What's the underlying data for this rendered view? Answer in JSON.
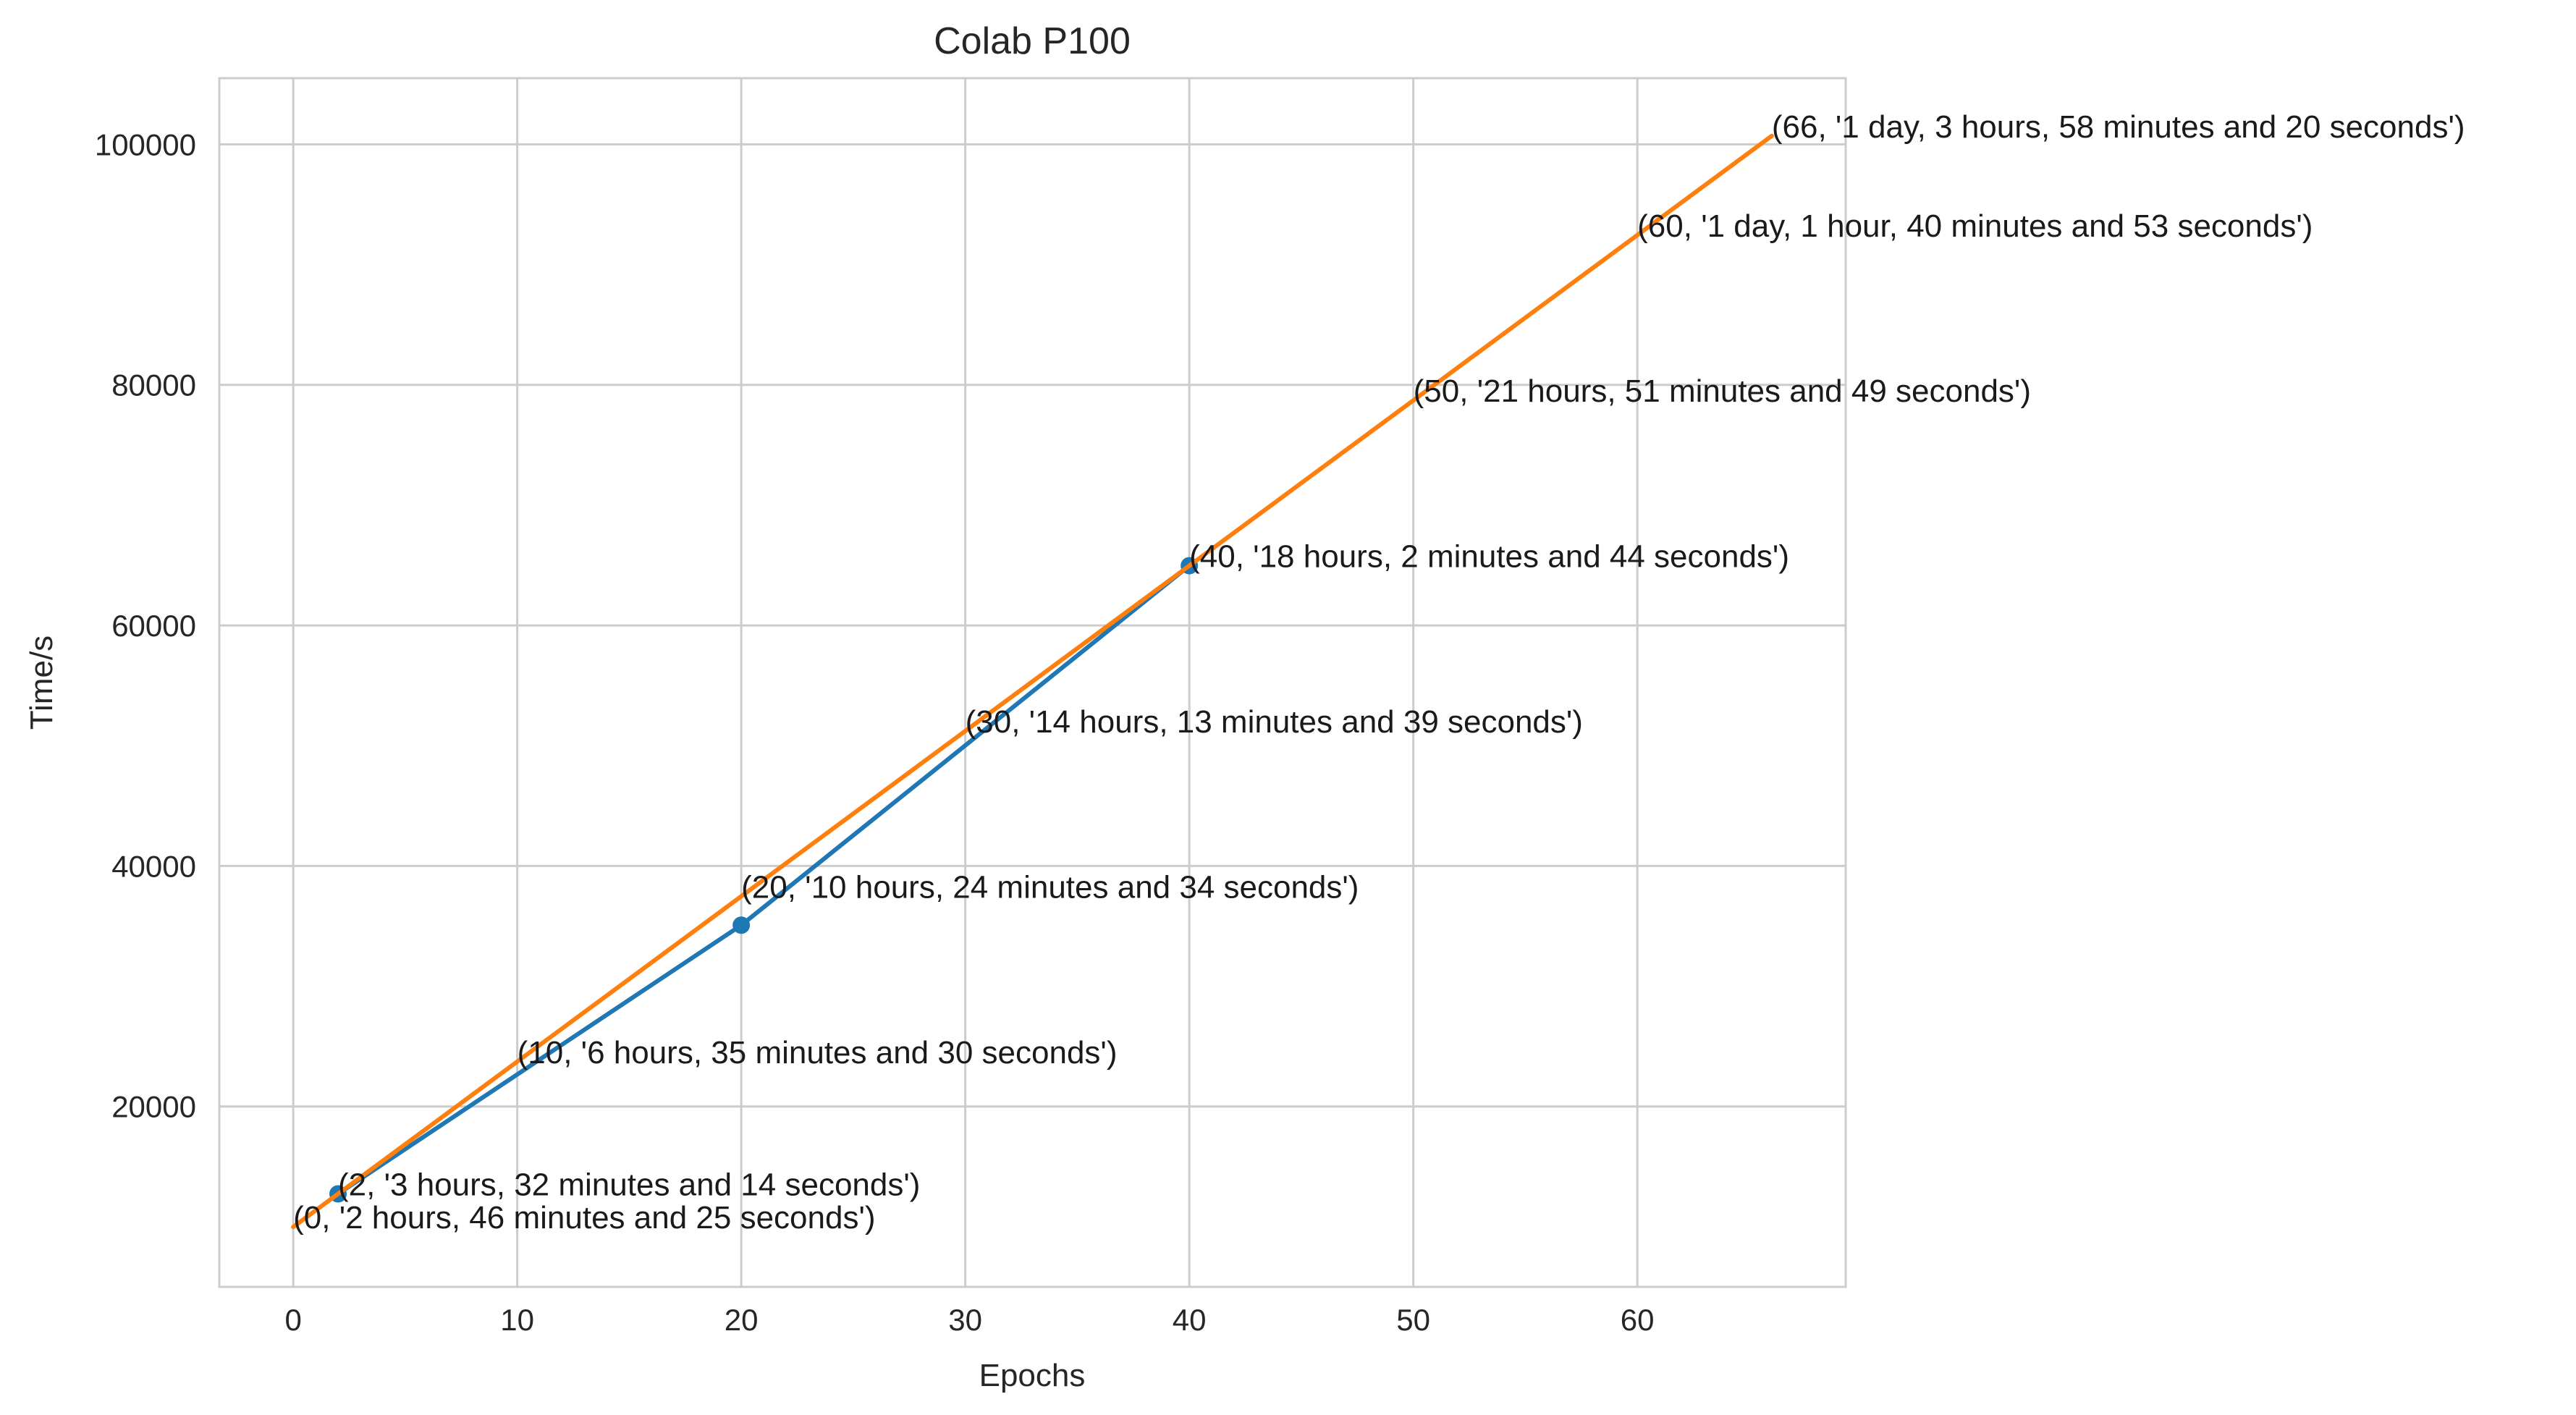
{
  "chart_data": {
    "type": "line",
    "title": "Colab P100",
    "xlabel": "Epochs",
    "ylabel": "Time/s",
    "xlim": [
      -3.3,
      69.3
    ],
    "ylim": [
      5000,
      105500
    ],
    "xticks": [
      0,
      10,
      20,
      30,
      40,
      50,
      60
    ],
    "yticks": [
      20000,
      40000,
      60000,
      80000,
      100000
    ],
    "grid": true,
    "series": [
      {
        "color": "#1f77b4",
        "marker": "circle",
        "x": [
          2,
          20,
          40
        ],
        "y": [
          12734,
          35074,
          64964
        ]
      },
      {
        "color": "#ff7f0e",
        "marker": "none",
        "x": [
          0,
          66
        ],
        "y": [
          9985,
          100700
        ]
      }
    ],
    "annotations": [
      {
        "x": 0,
        "y": 9985,
        "text": "(0, '2 hours, 46 minutes and 25 seconds')"
      },
      {
        "x": 2,
        "y": 12734,
        "text": "(2, '3 hours, 32 minutes and 14 seconds')"
      },
      {
        "x": 10,
        "y": 23730,
        "text": "(10, '6 hours, 35 minutes and 30 seconds')"
      },
      {
        "x": 20,
        "y": 37474,
        "text": "(20, '10 hours, 24 minutes and 34 seconds')"
      },
      {
        "x": 30,
        "y": 51219,
        "text": "(30, '14 hours, 13 minutes and 39 seconds')"
      },
      {
        "x": 40,
        "y": 64964,
        "text": "(40, '18 hours, 2 minutes and 44 seconds')"
      },
      {
        "x": 50,
        "y": 78709,
        "text": "(50, '21 hours, 51 minutes and 49 seconds')"
      },
      {
        "x": 60,
        "y": 92453,
        "text": "(60, '1 day, 1 hour, 40 minutes and 53 seconds')"
      },
      {
        "x": 66,
        "y": 100700,
        "text": "(66, '1 day, 3 hours, 58 minutes and 20 seconds')"
      }
    ]
  }
}
